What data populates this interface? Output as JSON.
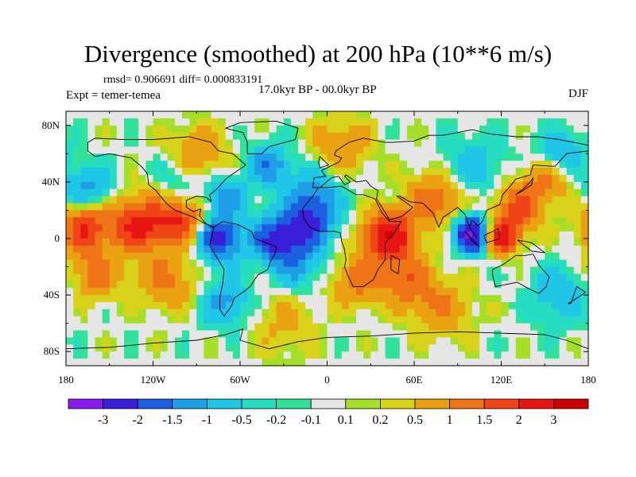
{
  "chart_data": {
    "type": "heatmap",
    "title": "Divergence (smoothed) at 200 hPa (10**6 m/s)",
    "stats": "rmsd= 0.906691 diff= 0.000833191",
    "experiment": "Expt = temer-temea",
    "period": "17.0kyr BP - 00.0kyr BP",
    "season": "DJF",
    "xlim": [
      -180,
      180
    ],
    "ylim": [
      -90,
      90
    ],
    "x_ticks": [
      {
        "value": -180,
        "label": "180"
      },
      {
        "value": -120,
        "label": "120W"
      },
      {
        "value": -60,
        "label": "60W"
      },
      {
        "value": 0,
        "label": "0"
      },
      {
        "value": 60,
        "label": "60E"
      },
      {
        "value": 120,
        "label": "120E"
      },
      {
        "value": 180,
        "label": "180"
      }
    ],
    "y_ticks": [
      {
        "value": 80,
        "label": "80N"
      },
      {
        "value": 40,
        "label": "40N"
      },
      {
        "value": 0,
        "label": "0"
      },
      {
        "value": -40,
        "label": "40S"
      },
      {
        "value": -80,
        "label": "80S"
      }
    ],
    "contour_levels": [
      "-3",
      "-2",
      "-1.5",
      "-1",
      "-0.5",
      "-0.2",
      "-0.1",
      "0.1",
      "0.2",
      "0.5",
      "1",
      "1.5",
      "2",
      "3"
    ],
    "colorbar_colors": [
      "#8a1aee",
      "#3a1fd8",
      "#1b5fe0",
      "#1f9ee8",
      "#20c6e6",
      "#26ddc3",
      "#33e29a",
      "#e6e6e6",
      "#a6df2a",
      "#d9d21a",
      "#eaa212",
      "#ee7416",
      "#ef4415",
      "#e71612",
      "#cc0000"
    ],
    "features": [
      {
        "lon": 100,
        "lat": 3,
        "value": -3.2,
        "spread": 9
      },
      {
        "lon": -75,
        "lat": 0,
        "value": -2.4,
        "spread": 11
      },
      {
        "lon": -35,
        "lat": -1,
        "value": -2.1,
        "spread": 12
      },
      {
        "lon": -12,
        "lat": 8,
        "value": -1.4,
        "spread": 12
      },
      {
        "lon": -10,
        "lat": 28,
        "value": -1.5,
        "spread": 14
      },
      {
        "lon": -168,
        "lat": 8,
        "value": 2.0,
        "spread": 12
      },
      {
        "lon": -130,
        "lat": 10,
        "value": 2.2,
        "spread": 14
      },
      {
        "lon": -100,
        "lat": 12,
        "value": 1.8,
        "spread": 12
      },
      {
        "lon": 42,
        "lat": 2,
        "value": 2.8,
        "spread": 12
      },
      {
        "lon": 120,
        "lat": 0,
        "value": 2.4,
        "spread": 8
      },
      {
        "lon": 130,
        "lat": 20,
        "value": 1.6,
        "spread": 12
      },
      {
        "lon": 75,
        "lat": 28,
        "value": 1.4,
        "spread": 14
      },
      {
        "lon": 150,
        "lat": 40,
        "value": 1.2,
        "spread": 12
      },
      {
        "lon": -160,
        "lat": -25,
        "value": 1.3,
        "spread": 12
      },
      {
        "lon": -110,
        "lat": -30,
        "value": 1.1,
        "spread": 14
      },
      {
        "lon": -90,
        "lat": 58,
        "value": 1.2,
        "spread": 14
      },
      {
        "lon": 10,
        "lat": 65,
        "value": 1.0,
        "spread": 14
      },
      {
        "lon": -40,
        "lat": 52,
        "value": -1.4,
        "spread": 10
      },
      {
        "lon": 160,
        "lat": 60,
        "value": -1.0,
        "spread": 12
      },
      {
        "lon": -165,
        "lat": 35,
        "value": -1.2,
        "spread": 12
      },
      {
        "lon": -70,
        "lat": 30,
        "value": -1.3,
        "spread": 10
      },
      {
        "lon": -100,
        "lat": 45,
        "value": -0.8,
        "spread": 12
      },
      {
        "lon": 55,
        "lat": -30,
        "value": 1.3,
        "spread": 14
      },
      {
        "lon": 20,
        "lat": -30,
        "value": 1.2,
        "spread": 12
      },
      {
        "lon": -20,
        "lat": -20,
        "value": -1.0,
        "spread": 12
      },
      {
        "lon": 160,
        "lat": -40,
        "value": -0.9,
        "spread": 14
      },
      {
        "lon": -70,
        "lat": -45,
        "value": -1.2,
        "spread": 12
      },
      {
        "lon": 80,
        "lat": -50,
        "value": 0.9,
        "spread": 14
      },
      {
        "lon": 100,
        "lat": 50,
        "value": -0.8,
        "spread": 16
      },
      {
        "lon": -30,
        "lat": -60,
        "value": 0.6,
        "spread": 16
      }
    ]
  }
}
